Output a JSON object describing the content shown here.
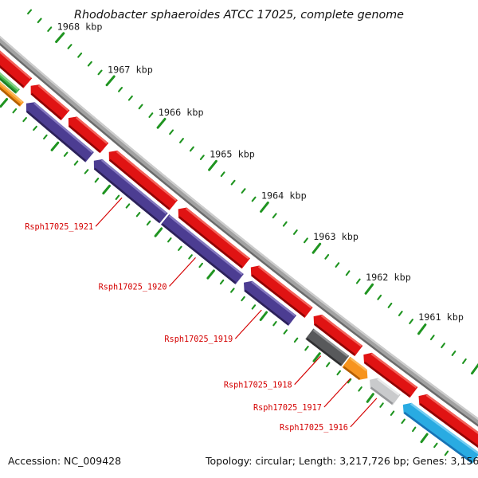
{
  "title": "Rhodobacter sphaeroides ATCC 17025, complete genome",
  "footer": {
    "accession": "Accession: NC_009428",
    "info": "Topology: circular; Length: 3,217,726 bp; Genes: 3,156"
  },
  "scale": {
    "unit": "kbp",
    "minor_step_kbp": 0.2,
    "major_step_kbp": 1,
    "tick_range_kbp": [
      1959.6,
      1968.6
    ],
    "tick_color": "#1F9420",
    "label_color": "#1a1a1a",
    "labels": [
      {
        "kbp": 1968,
        "text": "1968 kbp"
      },
      {
        "kbp": 1967,
        "text": "1967 kbp"
      },
      {
        "kbp": 1966,
        "text": "1966 kbp"
      },
      {
        "kbp": 1965,
        "text": "1965 kbp"
      },
      {
        "kbp": 1964,
        "text": "1964 kbp"
      },
      {
        "kbp": 1963,
        "text": "1963 kbp"
      },
      {
        "kbp": 1962,
        "text": "1962 kbp"
      },
      {
        "kbp": 1961,
        "text": "1961 kbp"
      }
    ]
  },
  "backbone_colors": {
    "main": "#A2A2A2",
    "light": "#CDCDCD",
    "dark": "#6A6A6A"
  },
  "palette": {
    "red": {
      "main": "#E01313",
      "hi": "#F2625A",
      "sh": "#8F0404"
    },
    "purple": {
      "main": "#4C3D92",
      "hi": "#8478BE",
      "sh": "#2C2159"
    },
    "green": {
      "main": "#3FB449",
      "hi": "#8BD289",
      "sh": "#1E7D26"
    },
    "orange": {
      "main": "#F7941E",
      "hi": "#FBB95C",
      "sh": "#B35E00"
    },
    "darkgray": {
      "main": "#58595B",
      "hi": "#8E8F91",
      "sh": "#2F2F31"
    },
    "lightgray": {
      "main": "#C9CACC",
      "hi": "#E9EAEB",
      "sh": "#96979A"
    },
    "cyan": {
      "main": "#29ABE2",
      "hi": "#74CDF2",
      "sh": "#1773B5"
    }
  },
  "outer_track": {
    "color_key": "red",
    "genes": [
      {
        "start": 1967.92,
        "end": 1968.8,
        "head": "up"
      },
      {
        "start": 1967.18,
        "end": 1967.86,
        "head": "up"
      },
      {
        "start": 1966.42,
        "end": 1967.12,
        "head": "up"
      },
      {
        "start": 1965.08,
        "end": 1966.33,
        "head": "up"
      },
      {
        "start": 1963.69,
        "end": 1964.99,
        "head": "up"
      },
      {
        "start": 1962.5,
        "end": 1963.6,
        "head": "up"
      },
      {
        "start": 1961.56,
        "end": 1962.41,
        "head": "up"
      },
      {
        "start": 1960.53,
        "end": 1961.47,
        "head": "up"
      },
      {
        "start": 1959.25,
        "end": 1960.44,
        "head": "up"
      }
    ]
  },
  "inner_track": {
    "genes": [
      {
        "id": "",
        "color_key": "green",
        "start": 1967.95,
        "end": 1968.9,
        "head": "up",
        "lane": "outer",
        "labeled": false
      },
      {
        "id": "",
        "color_key": "orange",
        "start": 1967.78,
        "end": 1968.78,
        "head": "up",
        "lane": "inner",
        "labeled": false
      },
      {
        "id": "",
        "color_key": "purple",
        "start": 1966.5,
        "end": 1967.74,
        "head": "up",
        "lane": "full",
        "labeled": false
      },
      {
        "id": "Rsph17025_1921",
        "color_key": "purple",
        "start": 1965.07,
        "end": 1966.42,
        "head": "up",
        "lane": "full",
        "labeled": true
      },
      {
        "id": "Rsph17025_1920",
        "color_key": "purple",
        "start": 1963.62,
        "end": 1965.045,
        "head": "none",
        "lane": "full",
        "labeled": true
      },
      {
        "id": "Rsph17025_1919",
        "color_key": "purple",
        "start": 1962.62,
        "end": 1963.54,
        "head": "up",
        "lane": "full",
        "labeled": true
      },
      {
        "id": "Rsph17025_1918",
        "color_key": "darkgray",
        "start": 1961.63,
        "end": 1962.3,
        "head": "none",
        "lane": "full",
        "labeled": true
      },
      {
        "id": "Rsph17025_1917",
        "color_key": "orange",
        "start": 1961.21,
        "end": 1961.61,
        "head": "down",
        "lane": "full",
        "labeled": true
      },
      {
        "id": "Rsph17025_1916",
        "color_key": "lightgray",
        "start": 1960.67,
        "end": 1961.17,
        "head": "up",
        "lane": "full",
        "labeled": true
      },
      {
        "id": "",
        "color_key": "cyan",
        "start": 1959.2,
        "end": 1960.55,
        "head": "up",
        "lane": "full",
        "labeled": false
      }
    ]
  },
  "gene_label_style": {
    "color": "#D40000"
  }
}
